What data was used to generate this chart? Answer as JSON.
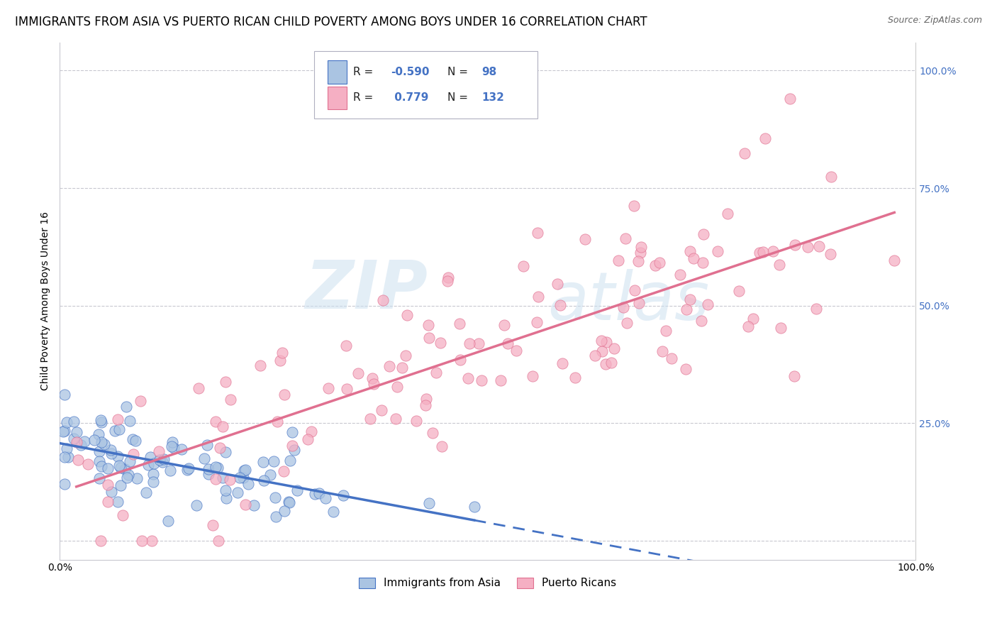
{
  "title": "IMMIGRANTS FROM ASIA VS PUERTO RICAN CHILD POVERTY AMONG BOYS UNDER 16 CORRELATION CHART",
  "source": "Source: ZipAtlas.com",
  "ylabel": "Child Poverty Among Boys Under 16",
  "xlim": [
    0.0,
    1.0
  ],
  "ylim": [
    -0.05,
    1.05
  ],
  "yticks": [
    0.0,
    0.25,
    0.5,
    0.75,
    1.0
  ],
  "ytick_labels_right": [
    "",
    "25.0%",
    "50.0%",
    "75.0%",
    "100.0%"
  ],
  "legend_label1": "Immigrants from Asia",
  "legend_label2": "Puerto Ricans",
  "R1": "-0.590",
  "N1": "98",
  "R2": "0.779",
  "N2": "132",
  "color_asia": "#aac4e2",
  "color_pr": "#f5afc3",
  "color_asia_line": "#4472c4",
  "color_pr_line": "#e07090",
  "watermark_zip": "ZIP",
  "watermark_atlas": "atlas",
  "title_fontsize": 12,
  "axis_label_fontsize": 10,
  "tick_fontsize": 10,
  "n_asia": 98,
  "n_pr": 132,
  "R_asia": -0.59,
  "R_pr": 0.779
}
